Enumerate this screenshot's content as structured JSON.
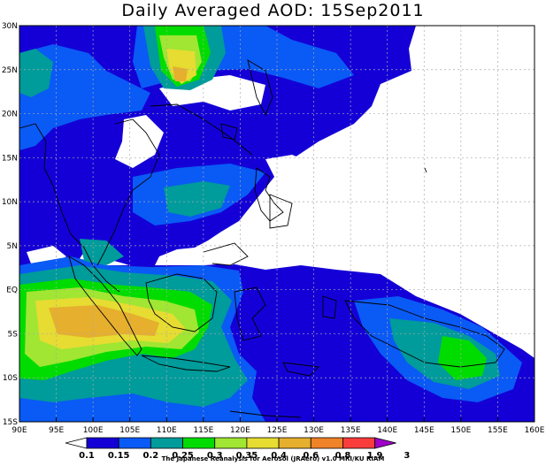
{
  "title": "Daily Averaged AOD: 15Sep2011",
  "credit": "The Japanese Reanalysis for Aerosol (JRAero) v1.0 MRI/KU RIAM",
  "map": {
    "lon_range": [
      90,
      160
    ],
    "lat_range": [
      -15,
      30
    ],
    "lon_ticks": [
      "90E",
      "95E",
      "100E",
      "105E",
      "110E",
      "115E",
      "120E",
      "125E",
      "130E",
      "135E",
      "140E",
      "145E",
      "150E",
      "155E",
      "160E"
    ],
    "lat_ticks": [
      "15S",
      "10S",
      "5S",
      "EQ",
      "5N",
      "10N",
      "15N",
      "20N",
      "25N",
      "30N"
    ],
    "grid": true,
    "variable": "AOD"
  },
  "colorbar": {
    "levels": [
      "0.1",
      "0.15",
      "0.2",
      "0.25",
      "0.3",
      "0.35",
      "0.4",
      "0.6",
      "0.8",
      "1.9",
      "3"
    ],
    "colors": [
      "#ffffff",
      "#1400d7",
      "#0a5af5",
      "#009b9b",
      "#00dc00",
      "#a0e632",
      "#e6dc32",
      "#e6af2d",
      "#f08228",
      "#fa3c3c",
      "#a000c8"
    ]
  }
}
